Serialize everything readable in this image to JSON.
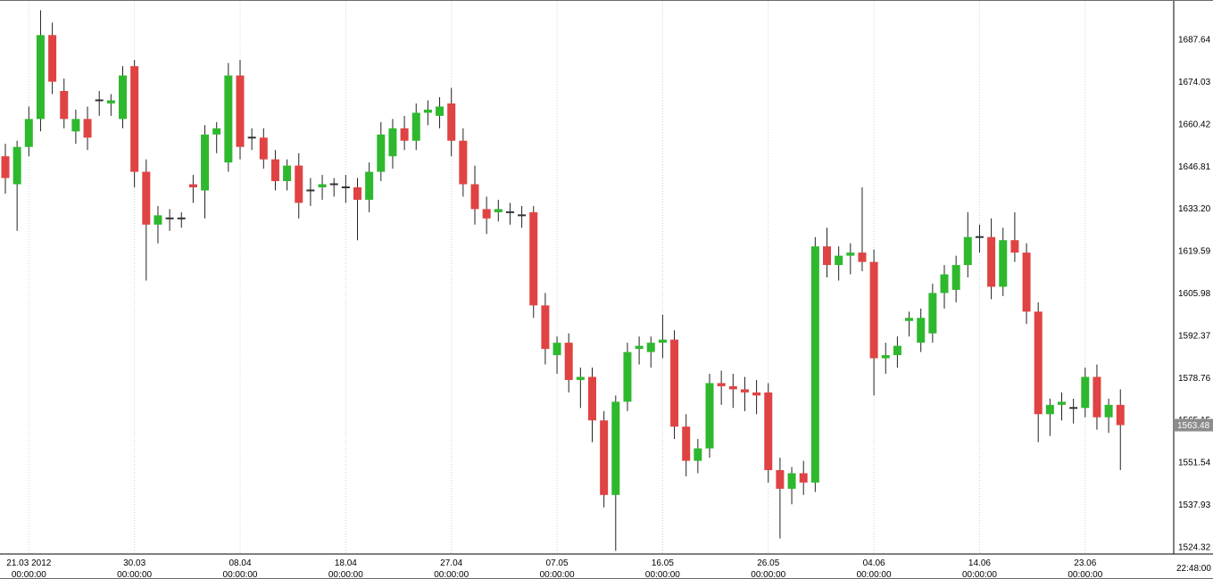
{
  "window_title": "Candlestick price chart",
  "chart_data": {
    "type": "candlestick",
    "legend_position": "none",
    "grid": "vertical-dotted",
    "y_axis": {
      "min": 1522.0,
      "max": 1700.0,
      "labels": [
        "1687.64",
        "1674.03",
        "1660.42",
        "1646.81",
        "1633.20",
        "1619.59",
        "1605.98",
        "1592.37",
        "1578.76",
        "1565.15",
        "1551.54",
        "1537.93",
        "1524.32"
      ]
    },
    "x_axis": {
      "labels": [
        {
          "index": 2,
          "date": "21.03 2012",
          "time": "00:00:00"
        },
        {
          "index": 11,
          "date": "30.03",
          "time": "00:00:00"
        },
        {
          "index": 20,
          "date": "08.04",
          "time": "00:00:00"
        },
        {
          "index": 29,
          "date": "18.04",
          "time": "00:00:00"
        },
        {
          "index": 38,
          "date": "27.04",
          "time": "00:00:00"
        },
        {
          "index": 47,
          "date": "07.05",
          "time": "00:00:00"
        },
        {
          "index": 56,
          "date": "16.05",
          "time": "00:00:00"
        },
        {
          "index": 65,
          "date": "26.05",
          "time": "00:00:00"
        },
        {
          "index": 74,
          "date": "04.06",
          "time": "00:00:00"
        },
        {
          "index": 83,
          "date": "14.06",
          "time": "00:00:00"
        },
        {
          "index": 92,
          "date": "23.06",
          "time": "00:00:00"
        }
      ]
    },
    "current_price": {
      "value": "1563.48",
      "bg": "#8c8c8c",
      "fg": "#ffffff"
    },
    "last_time": "22:48:00",
    "colors": {
      "up": "#2eb82e",
      "down": "#e04343",
      "wick": "#222222",
      "doji": "#333333",
      "grid": "#d4d4d4",
      "axis": "#000000",
      "background": "#ffffff"
    },
    "candles": [
      [
        1650,
        1654,
        1638,
        1643
      ],
      [
        1641,
        1655,
        1626,
        1653
      ],
      [
        1653,
        1666,
        1650,
        1662
      ],
      [
        1662,
        1697,
        1658,
        1689
      ],
      [
        1689,
        1693,
        1670,
        1674
      ],
      [
        1671,
        1675,
        1659,
        1662
      ],
      [
        1658,
        1665,
        1654,
        1662
      ],
      [
        1662,
        1666,
        1652,
        1656
      ],
      [
        1668,
        1671,
        1663,
        1668
      ],
      [
        1667,
        1670,
        1663,
        1668
      ],
      [
        1662,
        1679,
        1659,
        1676
      ],
      [
        1679,
        1681,
        1640,
        1645
      ],
      [
        1645,
        1649,
        1610,
        1628
      ],
      [
        1628,
        1634,
        1622,
        1631
      ],
      [
        1630,
        1633,
        1626,
        1630
      ],
      [
        1630,
        1632,
        1627,
        1630
      ],
      [
        1641,
        1644,
        1635,
        1640
      ],
      [
        1639,
        1660,
        1630,
        1657
      ],
      [
        1657,
        1661,
        1651,
        1659
      ],
      [
        1648,
        1680,
        1645,
        1676
      ],
      [
        1676,
        1681,
        1649,
        1653
      ],
      [
        1656,
        1659,
        1652,
        1656
      ],
      [
        1656,
        1659,
        1646,
        1649
      ],
      [
        1649,
        1652,
        1639,
        1642
      ],
      [
        1642,
        1649,
        1639,
        1647
      ],
      [
        1647,
        1651,
        1630,
        1635
      ],
      [
        1639,
        1643,
        1634,
        1639
      ],
      [
        1640,
        1644,
        1636,
        1641
      ],
      [
        1641,
        1643,
        1637,
        1641
      ],
      [
        1640,
        1644,
        1635,
        1640
      ],
      [
        1640,
        1643,
        1623,
        1636
      ],
      [
        1636,
        1648,
        1632,
        1645
      ],
      [
        1645,
        1661,
        1642,
        1657
      ],
      [
        1650,
        1662,
        1646,
        1659
      ],
      [
        1659,
        1663,
        1652,
        1655
      ],
      [
        1655,
        1667,
        1652,
        1664
      ],
      [
        1664,
        1668,
        1660,
        1665
      ],
      [
        1663,
        1669,
        1659,
        1666
      ],
      [
        1667,
        1672,
        1650,
        1655
      ],
      [
        1655,
        1659,
        1637,
        1641
      ],
      [
        1641,
        1647,
        1628,
        1633
      ],
      [
        1633,
        1637,
        1625,
        1630
      ],
      [
        1632,
        1636,
        1629,
        1633
      ],
      [
        1632,
        1635,
        1628,
        1632
      ],
      [
        1631,
        1634,
        1627,
        1631
      ],
      [
        1632,
        1634,
        1598,
        1602
      ],
      [
        1602,
        1606,
        1583,
        1588
      ],
      [
        1586,
        1592,
        1580,
        1590
      ],
      [
        1590,
        1593,
        1574,
        1578
      ],
      [
        1578,
        1582,
        1569,
        1579
      ],
      [
        1579,
        1582,
        1558,
        1565
      ],
      [
        1565,
        1568,
        1537,
        1541
      ],
      [
        1541,
        1573,
        1523,
        1571
      ],
      [
        1571,
        1590,
        1568,
        1587
      ],
      [
        1588,
        1592,
        1583,
        1589
      ],
      [
        1587,
        1592,
        1582,
        1590
      ],
      [
        1590,
        1599,
        1585,
        1591
      ],
      [
        1591,
        1594,
        1559,
        1563
      ],
      [
        1563,
        1567,
        1547,
        1552
      ],
      [
        1552,
        1559,
        1548,
        1556
      ],
      [
        1556,
        1580,
        1553,
        1577
      ],
      [
        1577,
        1581,
        1570,
        1576
      ],
      [
        1576,
        1580,
        1569,
        1575
      ],
      [
        1575,
        1579,
        1568,
        1574
      ],
      [
        1574,
        1578,
        1567,
        1573
      ],
      [
        1574,
        1577,
        1545,
        1549
      ],
      [
        1549,
        1553,
        1527,
        1543
      ],
      [
        1543,
        1550,
        1538,
        1548
      ],
      [
        1548,
        1552,
        1541,
        1545
      ],
      [
        1545,
        1624,
        1542,
        1621
      ],
      [
        1621,
        1627,
        1611,
        1615
      ],
      [
        1615,
        1621,
        1610,
        1618
      ],
      [
        1618,
        1622,
        1612,
        1619
      ],
      [
        1619,
        1640,
        1613,
        1616
      ],
      [
        1616,
        1620,
        1573,
        1585
      ],
      [
        1585,
        1590,
        1580,
        1586
      ],
      [
        1586,
        1592,
        1582,
        1589
      ],
      [
        1597,
        1600,
        1592,
        1598
      ],
      [
        1590,
        1601,
        1587,
        1598
      ],
      [
        1593,
        1609,
        1590,
        1606
      ],
      [
        1606,
        1615,
        1601,
        1612
      ],
      [
        1607,
        1618,
        1603,
        1615
      ],
      [
        1615,
        1632,
        1611,
        1624
      ],
      [
        1624,
        1628,
        1619,
        1624
      ],
      [
        1624,
        1630,
        1604,
        1608
      ],
      [
        1608,
        1627,
        1605,
        1623
      ],
      [
        1623,
        1632,
        1616,
        1619
      ],
      [
        1619,
        1622,
        1596,
        1600
      ],
      [
        1600,
        1603,
        1558,
        1567
      ],
      [
        1567,
        1572,
        1560,
        1570
      ],
      [
        1570,
        1574,
        1565,
        1571
      ],
      [
        1569,
        1572,
        1564,
        1569
      ],
      [
        1569,
        1582,
        1566,
        1579
      ],
      [
        1579,
        1583,
        1562,
        1566
      ],
      [
        1566,
        1572,
        1561,
        1570
      ],
      [
        1570,
        1575,
        1549,
        1563.48
      ]
    ]
  }
}
